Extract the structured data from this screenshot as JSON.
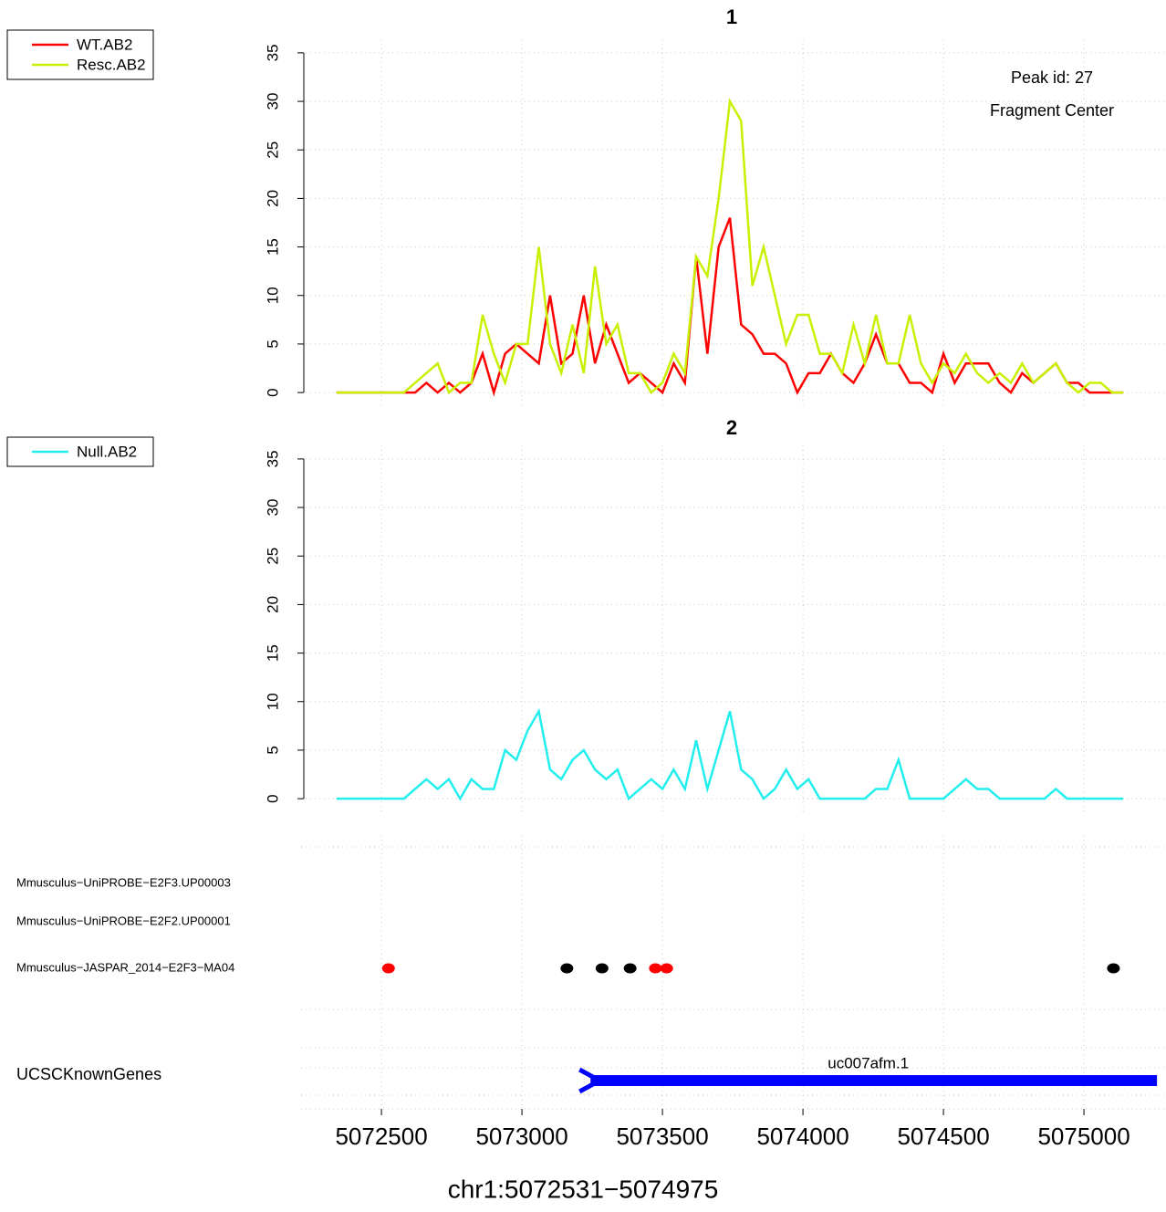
{
  "chart_data": [
    {
      "type": "line",
      "title": "1",
      "annotations": [
        "Peak id: 27",
        "Fragment Center"
      ],
      "x": [
        5072340,
        5072380,
        5072420,
        5072460,
        5072500,
        5072540,
        5072580,
        5072620,
        5072660,
        5072700,
        5072740,
        5072780,
        5072820,
        5072860,
        5072900,
        5072940,
        5072980,
        5073020,
        5073060,
        5073100,
        5073140,
        5073180,
        5073220,
        5073260,
        5073300,
        5073340,
        5073380,
        5073420,
        5073460,
        5073500,
        5073540,
        5073580,
        5073620,
        5073660,
        5073700,
        5073740,
        5073780,
        5073820,
        5073860,
        5073900,
        5073940,
        5073980,
        5074020,
        5074060,
        5074100,
        5074140,
        5074180,
        5074220,
        5074260,
        5074300,
        5074340,
        5074380,
        5074420,
        5074460,
        5074500,
        5074540,
        5074580,
        5074620,
        5074660,
        5074700,
        5074740,
        5074780,
        5074820,
        5074860,
        5074900,
        5074940,
        5074980,
        5075020,
        5075060,
        5075100,
        5075140
      ],
      "series": [
        {
          "name": "WT.AB2",
          "color": "#ff0000",
          "values": [
            0,
            0,
            0,
            0,
            0,
            0,
            0,
            0,
            1,
            0,
            1,
            0,
            1,
            4,
            0,
            4,
            5,
            4,
            3,
            10,
            3,
            4,
            10,
            3,
            7,
            4,
            1,
            2,
            1,
            0,
            3,
            1,
            14,
            4,
            15,
            18,
            7,
            6,
            4,
            4,
            3,
            0,
            2,
            2,
            4,
            2,
            1,
            3,
            6,
            3,
            3,
            1,
            1,
            0,
            4,
            1,
            3,
            3,
            3,
            1,
            0,
            2,
            1,
            2,
            3,
            1,
            1,
            0,
            0,
            0,
            0
          ]
        },
        {
          "name": "Resc.AB2",
          "color": "#c8f000",
          "values": [
            0,
            0,
            0,
            0,
            0,
            0,
            0,
            1,
            2,
            3,
            0,
            1,
            1,
            8,
            4,
            1,
            5,
            5,
            15,
            5,
            2,
            7,
            2,
            13,
            5,
            7,
            2,
            2,
            0,
            1,
            4,
            2,
            14,
            12,
            20,
            30,
            28,
            11,
            15,
            10,
            5,
            8,
            8,
            4,
            4,
            2,
            7,
            3,
            8,
            3,
            3,
            8,
            3,
            1,
            3,
            2,
            4,
            2,
            1,
            2,
            1,
            3,
            1,
            2,
            3,
            1,
            0,
            1,
            1,
            0,
            0
          ]
        }
      ],
      "xlim": [
        5072214,
        5075292
      ],
      "ylim": [
        -1.4,
        36.4
      ],
      "yticks": [
        0,
        5,
        10,
        15,
        20,
        25,
        30,
        35
      ],
      "grid": true
    },
    {
      "type": "line",
      "title": "2",
      "x": [
        5072340,
        5072380,
        5072420,
        5072460,
        5072500,
        5072540,
        5072580,
        5072620,
        5072660,
        5072700,
        5072740,
        5072780,
        5072820,
        5072860,
        5072900,
        5072940,
        5072980,
        5073020,
        5073060,
        5073100,
        5073140,
        5073180,
        5073220,
        5073260,
        5073300,
        5073340,
        5073380,
        5073420,
        5073460,
        5073500,
        5073540,
        5073580,
        5073620,
        5073660,
        5073700,
        5073740,
        5073780,
        5073820,
        5073860,
        5073900,
        5073940,
        5073980,
        5074020,
        5074060,
        5074100,
        5074140,
        5074180,
        5074220,
        5074260,
        5074300,
        5074340,
        5074380,
        5074420,
        5074460,
        5074500,
        5074540,
        5074580,
        5074620,
        5074660,
        5074700,
        5074740,
        5074780,
        5074820,
        5074860,
        5074900,
        5074940,
        5074980,
        5075020,
        5075060,
        5075100,
        5075140
      ],
      "series": [
        {
          "name": "Null.AB2",
          "color": "#22eeee",
          "values": [
            0,
            0,
            0,
            0,
            0,
            0,
            0,
            1,
            2,
            1,
            2,
            0,
            2,
            1,
            1,
            5,
            4,
            7,
            9,
            3,
            2,
            4,
            5,
            3,
            2,
            3,
            0,
            1,
            2,
            1,
            3,
            1,
            6,
            1,
            5,
            9,
            3,
            2,
            0,
            1,
            3,
            1,
            2,
            0,
            0,
            0,
            0,
            0,
            1,
            1,
            4,
            0,
            0,
            0,
            0,
            1,
            2,
            1,
            1,
            0,
            0,
            0,
            0,
            0,
            1,
            0,
            0,
            0,
            0,
            0,
            0
          ]
        }
      ],
      "xlim": [
        5072214,
        5075292
      ],
      "ylim": [
        -1.4,
        36.4
      ],
      "yticks": [
        0,
        5,
        10,
        15,
        20,
        25,
        30,
        35
      ],
      "grid": true
    }
  ],
  "tracks": {
    "motifs": [
      {
        "name": "Mmusculus−UniPROBE−E2F3.UP00003",
        "x": [],
        "colors": []
      },
      {
        "name": "Mmusculus−UniPROBE−E2F2.UP00001",
        "x": [],
        "colors": []
      },
      {
        "name": "Mmusculus−JASPAR_2014−E2F3−MA04",
        "x": [
          5072525,
          5073160,
          5073285,
          5073385,
          5073475,
          5073515,
          5075105
        ],
        "colors": [
          "#ff0000",
          "#000000",
          "#000000",
          "#000000",
          "#ff0000",
          "#ff0000",
          "#000000"
        ]
      }
    ],
    "genes": {
      "name": "UCSCKnownGenes",
      "color": "#0000ff",
      "items": [
        {
          "label": "uc007afm.1",
          "start": 5073205,
          "end": 5075260
        }
      ]
    }
  },
  "x_axis": {
    "label": "chr1:5072531−5074975",
    "xlim": [
      5072214,
      5075292
    ],
    "xticks": [
      5072500,
      5073000,
      5073500,
      5074000,
      5074500,
      5075000
    ]
  }
}
